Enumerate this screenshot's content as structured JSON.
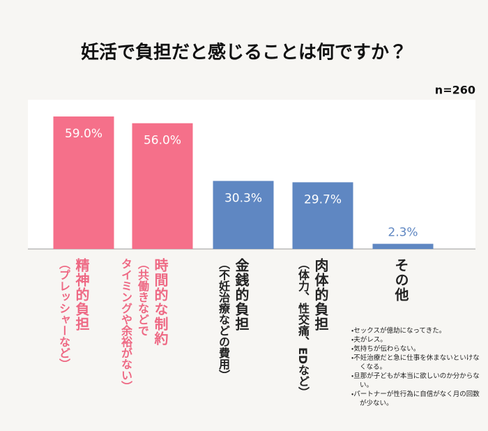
{
  "chart_data": {
    "type": "bar",
    "title": "妊活で負担だと感じることは何ですか？",
    "note": "n=260",
    "categories": [
      "精神的負担",
      "時間的な制約",
      "金銭的負担",
      "肉体的負担",
      "その他"
    ],
    "category_notes": [
      [
        "（プレッシャーなど）"
      ],
      [
        "（共働きなどで",
        "タイミングや余裕がない）"
      ],
      [
        "（不妊治療などの費用）"
      ],
      [
        "（体力、性交痛、EDなど）"
      ],
      []
    ],
    "values": [
      59.0,
      56.0,
      30.3,
      29.7,
      2.3
    ],
    "value_labels": [
      "59.0%",
      "56.0%",
      "30.3%",
      "29.7%",
      "2.3%"
    ],
    "colors": [
      "#f5708a",
      "#f5708a",
      "#5f87c2",
      "#5f87c2",
      "#5f87c2"
    ],
    "label_colors": [
      "#ee6984",
      "#ee6984",
      "#222222",
      "#222222",
      "#222222"
    ],
    "annotation": [
      "セックスが億劫になってきた。",
      "夫がレス。",
      "気持ちが伝わらない。",
      "不妊治療だと急に仕事を休まないといけなくなる。",
      "旦那が子どもが本当に欲しいのか分からない。",
      "パートナーが性行為に自信がなく月の回数が少ない。"
    ]
  }
}
